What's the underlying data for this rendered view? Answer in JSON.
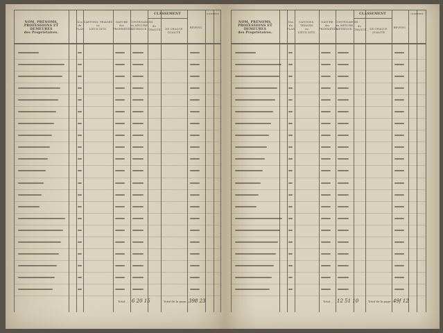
{
  "header": {
    "owner": [
      "NOM, PRÉNOMS,",
      "PROFESSIONS ET DEMEURES",
      "des Propriétaires."
    ],
    "plan_no": [
      "Nos",
      "du",
      "PLAN."
    ],
    "place": [
      "CANTONS, TRIAGES",
      "ou",
      "LIEUX DITS."
    ],
    "nature": [
      "NATURE",
      "des",
      "PROPRIÉTÉS."
    ],
    "area": [
      "CONTENANCES",
      "en MESURE",
      "MÉTRIQUE."
    ],
    "classement": "CLASSEMENT",
    "class_sub": [
      "de",
      "CHAQUE..."
    ],
    "class_sub2": "DE CHAQUE QUALITÉ",
    "revenu": "REVENU.",
    "notes": "NOMBRES"
  },
  "footer": {
    "total_label": "Total. . .",
    "page_total_label": "Total de la page. .",
    "left": {
      "total": [
        "6",
        "20",
        "15"
      ],
      "page_total": [
        "398",
        "23"
      ]
    },
    "right": {
      "total": [
        "12",
        "51",
        "10"
      ],
      "page_total": [
        "49f",
        "12"
      ]
    }
  },
  "handwritten_rows_per_page": 21
}
